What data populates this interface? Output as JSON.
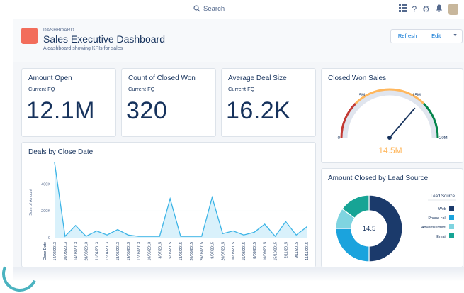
{
  "topbar": {
    "search_label": "Search"
  },
  "header": {
    "kicker": "DASHBOARD",
    "title": "Sales Executive Dashboard",
    "subtitle": "A dashboard showing KPIs for sales",
    "refresh_label": "Refresh",
    "edit_label": "Edit"
  },
  "kpis": [
    {
      "title": "Amount Open",
      "sub": "Current FQ",
      "value": "12.1M"
    },
    {
      "title": "Count of Closed Won",
      "sub": "Current FQ",
      "value": "320"
    },
    {
      "title": "Average Deal Size",
      "sub": "Current FQ",
      "value": "16.2K"
    }
  ],
  "gauge": {
    "title": "Closed Won Sales",
    "value_label": "14.5M",
    "value": 14.5,
    "ticks": [
      "0",
      "5M",
      "15M",
      "20M"
    ],
    "colors": {
      "low": "#c23934",
      "mid": "#ffb75d",
      "high": "#04844b",
      "track": "#e0e5ee",
      "value": "#ffb75d"
    }
  },
  "chart_data": [
    {
      "type": "area",
      "title": "Deals by Close Date",
      "ylabel": "Sum of Amount",
      "xlabel": "Close Date",
      "yticks": [
        "400K",
        "200K",
        "0"
      ],
      "ylim": [
        0,
        560000
      ],
      "x": [
        "14/02/2013",
        "10/03/2013",
        "14/03/2013",
        "28/03/2013",
        "11/04/2013",
        "17/04/2013",
        "18/05/2013",
        "19/05/2013",
        "17/06/2013",
        "10/06/2013",
        "3/07/2015",
        "5/06/2015",
        "13/06/2015",
        "20/06/2015",
        "26/06/2015",
        "8/07/2015",
        "20/07/2015",
        "10/08/2015",
        "15/08/2015",
        "8/09/2015",
        "10/09/2015",
        "15/10/2015",
        "2/11/2015",
        "9/11/2015",
        "11/11/2015"
      ],
      "values": [
        560000,
        10000,
        90000,
        10000,
        50000,
        20000,
        60000,
        20000,
        10000,
        10000,
        10000,
        290000,
        10000,
        10000,
        10000,
        300000,
        30000,
        50000,
        20000,
        40000,
        100000,
        10000,
        120000,
        20000,
        80000
      ],
      "colors": {
        "line": "#3cb4e6",
        "fill": "#d9f1fb"
      }
    },
    {
      "type": "pie",
      "title": "Amount Closed by Lead Source",
      "center_label": "14.5",
      "legend_title": "Lead Source",
      "slices": [
        {
          "name": "Web",
          "value": 50,
          "color": "#1b3a6b"
        },
        {
          "name": "Phone call",
          "value": 25,
          "color": "#1ba3dd"
        },
        {
          "name": "Advertisement",
          "value": 10,
          "color": "#7fd4e0"
        },
        {
          "name": "Email",
          "value": 15,
          "color": "#17a495"
        }
      ]
    }
  ]
}
